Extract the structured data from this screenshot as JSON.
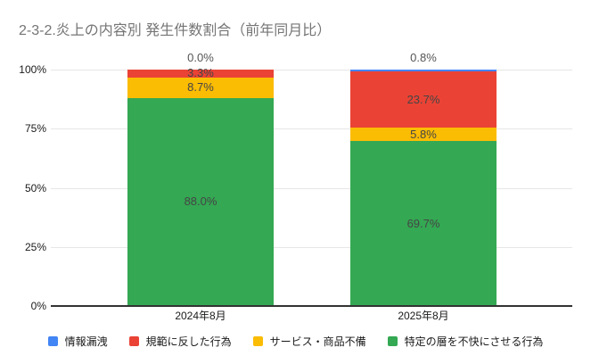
{
  "title": "2-3-2.炎上の内容別 発生件数割合（前年同月比）",
  "colors": {
    "background": "#ffffff",
    "title_text": "#757575",
    "gridline": "#e6e6e6",
    "axis_line": "#333333",
    "tick_text": "#1a1a1a",
    "annotation_text": "#454545"
  },
  "chart_data": {
    "type": "bar",
    "subtype": "stacked-100-percent-column",
    "title": "2-3-2.炎上の内容別 発生件数割合（前年同月比）",
    "categories": [
      "2024年8月",
      "2025年8月"
    ],
    "series": [
      {
        "name": "情報漏洩",
        "color": "#4285F4",
        "values": [
          0.0,
          0.8
        ]
      },
      {
        "name": "規範に反した行為",
        "color": "#EA4335",
        "values": [
          3.3,
          23.7
        ]
      },
      {
        "name": "サービス・商品不備",
        "color": "#FBBC04",
        "values": [
          8.7,
          5.8
        ]
      },
      {
        "name": "特定の層を不快にさせる行為",
        "color": "#34A853",
        "values": [
          88.0,
          69.7
        ]
      }
    ],
    "annotations": [
      [
        "0.0%",
        "3.3%",
        "8.7%",
        "88.0%"
      ],
      [
        "0.8%",
        "23.7%",
        "5.8%",
        "69.7%"
      ]
    ],
    "y_axis": {
      "ticks": [
        "100%",
        "75%",
        "50%",
        "25%",
        "0%"
      ],
      "tick_values": [
        100,
        75,
        50,
        25,
        0
      ],
      "range": [
        0,
        100
      ],
      "grid": true
    },
    "legend_position": "bottom"
  }
}
